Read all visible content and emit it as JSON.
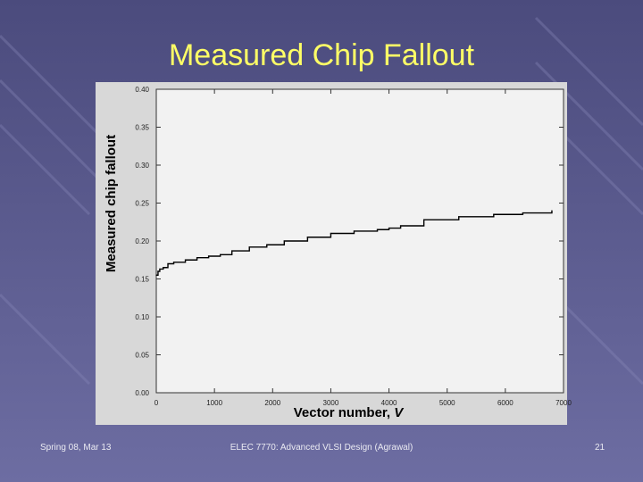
{
  "slide": {
    "title": "Measured Chip Fallout",
    "footer_left": "Spring 08, Mar 13",
    "footer_center": "ELEC 7770: Advanced VLSI Design (Agrawal)",
    "footer_right": "21",
    "background_color": "#5a5a8e",
    "title_color": "#ffff66"
  },
  "chart_data": {
    "type": "line",
    "title": "",
    "xlabel": "Vector number, ",
    "xlabel_var": "V",
    "ylabel": "Measured chip fallout",
    "xlim": [
      0,
      7000
    ],
    "ylim": [
      0.0,
      0.4
    ],
    "xticks": [
      "0",
      "1000",
      "2000",
      "3000",
      "4000",
      "5000",
      "6000",
      "7000"
    ],
    "yticks": [
      "0.00",
      "0.05",
      "0.10",
      "0.15",
      "0.20",
      "0.25",
      "0.30",
      "0.35",
      "0.40"
    ],
    "grid": false,
    "line_color": "#000000",
    "series": [
      {
        "x": [
          0,
          30,
          60,
          120,
          200,
          300,
          500,
          700,
          900,
          1100,
          1300,
          1600,
          1900,
          2200,
          2600,
          3000,
          3400,
          3800,
          4000,
          4200,
          4600,
          5200,
          5800,
          6300,
          6800
        ],
        "y": [
          0.155,
          0.16,
          0.163,
          0.165,
          0.17,
          0.172,
          0.175,
          0.178,
          0.18,
          0.182,
          0.187,
          0.192,
          0.195,
          0.2,
          0.205,
          0.21,
          0.213,
          0.215,
          0.217,
          0.22,
          0.228,
          0.232,
          0.235,
          0.237,
          0.24
        ]
      }
    ]
  }
}
